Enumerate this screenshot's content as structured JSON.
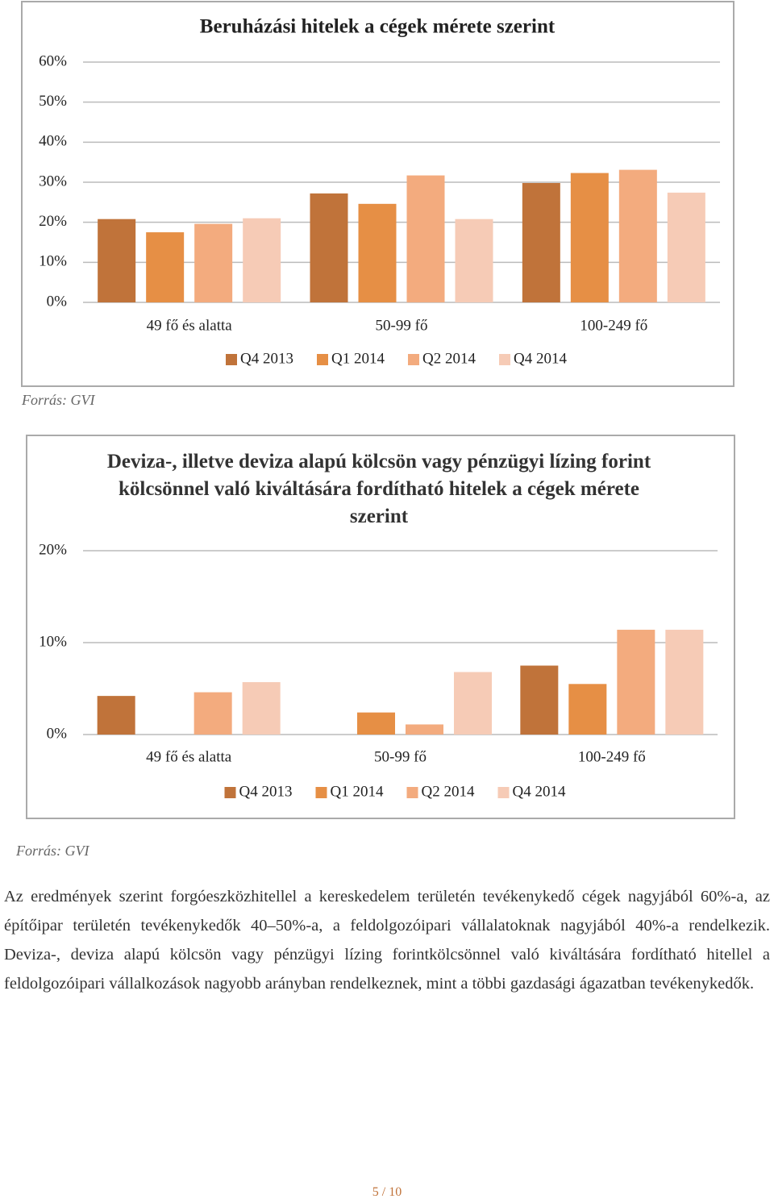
{
  "chart_data": [
    {
      "type": "bar",
      "title": "Beruházási hitelek a cégek mérete szerint",
      "categories": [
        "49 fő és alatta",
        "50-99 fő",
        "100-249 fő"
      ],
      "series": [
        {
          "name": "Q4 2013",
          "color": "#c0733a",
          "values": [
            20.8,
            27.2,
            29.8
          ]
        },
        {
          "name": "Q1 2014",
          "color": "#e68f45",
          "values": [
            17.5,
            24.6,
            32.3
          ]
        },
        {
          "name": "Q2 2014",
          "color": "#f3ab7e",
          "values": [
            19.6,
            31.7,
            33.1
          ]
        },
        {
          "name": "Q4 2014",
          "color": "#f6cbb6",
          "values": [
            21.0,
            20.8,
            27.4
          ]
        }
      ],
      "ylim": [
        0,
        60
      ],
      "yticks": [
        {
          "value": 0,
          "label": "0%"
        },
        {
          "value": 10,
          "label": "10%"
        },
        {
          "value": 20,
          "label": "20%"
        },
        {
          "value": 30,
          "label": "30%"
        },
        {
          "value": 40,
          "label": "40%"
        },
        {
          "value": 50,
          "label": "50%"
        },
        {
          "value": 60,
          "label": "60%"
        }
      ],
      "grid": true,
      "legend": "bottom"
    },
    {
      "type": "bar",
      "title": "Deviza-, illetve deviza alapú kölcsön vagy pénzügyi lízing forint kölcsönnel való kiváltására fordítható hitelek a cégek mérete szerint",
      "categories": [
        "49 fő és alatta",
        "50-99 fő",
        "100-249 fő"
      ],
      "series": [
        {
          "name": "Q4 2013",
          "color": "#c0733a",
          "values": [
            4.2,
            0,
            7.5
          ]
        },
        {
          "name": "Q1 2014",
          "color": "#e68f45",
          "values": [
            0,
            2.4,
            5.5
          ]
        },
        {
          "name": "Q2 2014",
          "color": "#f3ab7e",
          "values": [
            4.6,
            1.1,
            11.4
          ]
        },
        {
          "name": "Q4 2014",
          "color": "#f6cbb6",
          "values": [
            5.7,
            6.8,
            11.4
          ]
        }
      ],
      "ylim": [
        0,
        20
      ],
      "yticks": [
        {
          "value": 0,
          "label": "0%"
        },
        {
          "value": 10,
          "label": "10%"
        },
        {
          "value": 20,
          "label": "20%"
        }
      ],
      "grid": true,
      "legend": "bottom"
    }
  ],
  "sources": [
    "Forrás: GVI",
    "Forrás: GVI"
  ],
  "paragraph": "Az eredmények szerint forgóeszközhitellel a kereskedelem területén tevékenykedő cégek nagyjából 60%-a, az építőipar területén tevékenykedők 40–50%-a, a feldolgozóipari vállalatoknak nagyjából 40%-a rendelkezik. Deviza-, deviza alapú kölcsön vagy pénzügyi lízing forintkölcsönnel való kiváltására fordítható hitellel a feldolgozóipari vállalkozások nagyobb arányban rendelkeznek, mint a többi gazdasági ágazatban tevékenykedők.",
  "page_number": "5 / 10"
}
